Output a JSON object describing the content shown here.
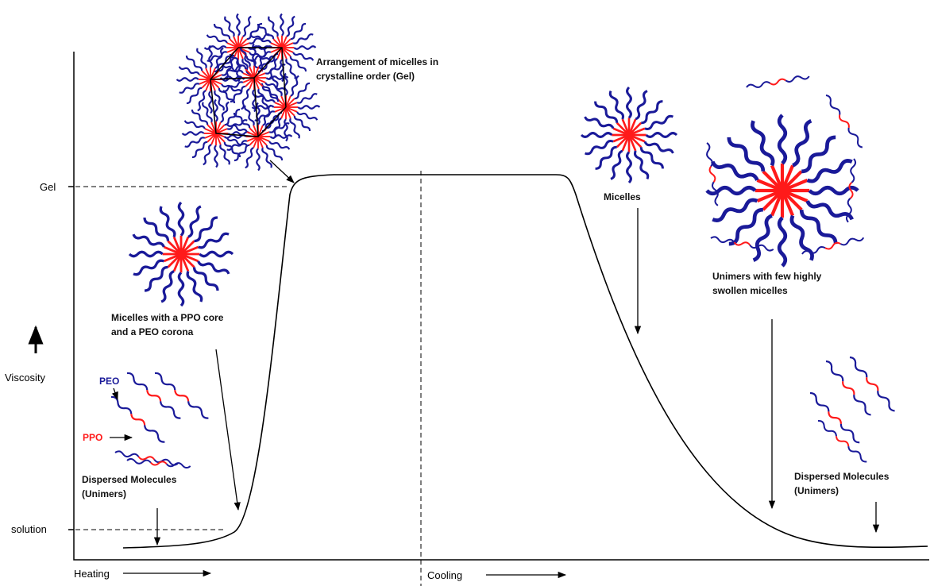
{
  "y_axis": {
    "label": "Viscosity",
    "levels": [
      "Gel",
      "solution"
    ]
  },
  "x_axis": {
    "phases": [
      "Heating",
      "Cooling"
    ]
  },
  "annotations": [
    {
      "lines": [
        "Arrangement of micelles in",
        "crystalline order (Gel)"
      ]
    },
    {
      "lines": [
        "Micelles"
      ]
    },
    {
      "lines": [
        "Unimers with few highly",
        "swollen micelles"
      ]
    },
    {
      "lines": [
        "Micelles with a PPO core",
        "and a PEO corona"
      ]
    },
    {
      "lines": [
        "Dispersed Molecules",
        "(Unimers)"
      ]
    },
    {
      "lines": [
        "Dispersed Molecules",
        "(Unimers)"
      ]
    }
  ],
  "block_labels": [
    "PEO",
    "PPO"
  ]
}
